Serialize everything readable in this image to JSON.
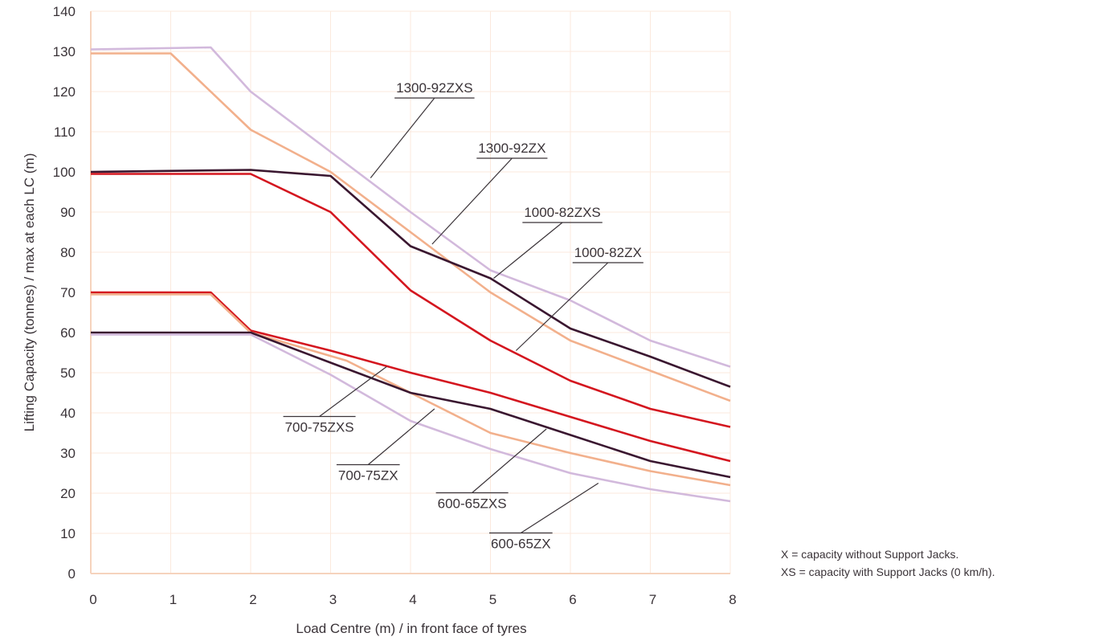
{
  "chart_data": {
    "type": "line",
    "title": "",
    "xlabel": "Load Centre (m) / in front face of tyres",
    "ylabel": "Lifting Capacity (tonnes) / max at each LC (m)",
    "xlim": [
      0,
      8
    ],
    "ylim": [
      0,
      140
    ],
    "xticks": [
      0,
      1,
      2,
      3,
      4,
      5,
      6,
      7,
      8
    ],
    "yticks": [
      0,
      10,
      20,
      30,
      40,
      50,
      60,
      70,
      80,
      90,
      100,
      110,
      120,
      130,
      140
    ],
    "grid": true,
    "colors": {
      "grid": "#fbe9dd",
      "axis": "#f6d3bd",
      "xs_light": "#d2b9dc",
      "x_peach": "#f2b08c",
      "dark": "#3a1730",
      "red": "#d4161f",
      "leader": "#3a3338"
    },
    "series": [
      {
        "name": "1300-92ZXS",
        "color": "#d2b9dc",
        "points": [
          [
            0,
            130.5
          ],
          [
            1.5,
            131
          ],
          [
            2,
            120
          ],
          [
            3,
            105
          ],
          [
            4,
            90
          ],
          [
            5,
            75.5
          ],
          [
            6,
            68
          ],
          [
            7,
            58
          ],
          [
            8,
            51.5
          ]
        ]
      },
      {
        "name": "1300-92ZX",
        "color": "#f2b08c",
        "points": [
          [
            0,
            129.5
          ],
          [
            1,
            129.5
          ],
          [
            2,
            110.5
          ],
          [
            3,
            100
          ],
          [
            4,
            85
          ],
          [
            5,
            70
          ],
          [
            6,
            58
          ],
          [
            7,
            50.5
          ],
          [
            8,
            43
          ]
        ]
      },
      {
        "name": "1000-82ZXS",
        "color": "#3a1730",
        "points": [
          [
            0,
            100
          ],
          [
            2,
            100.5
          ],
          [
            3,
            99
          ],
          [
            4,
            81.5
          ],
          [
            5,
            73.5
          ],
          [
            6,
            61
          ],
          [
            7,
            54
          ],
          [
            8,
            46.5
          ]
        ]
      },
      {
        "name": "1000-82ZX",
        "color": "#d4161f",
        "points": [
          [
            0,
            99.5
          ],
          [
            2,
            99.5
          ],
          [
            3,
            90
          ],
          [
            4,
            70.5
          ],
          [
            5,
            58
          ],
          [
            6,
            48
          ],
          [
            7,
            41
          ],
          [
            8,
            36.5
          ]
        ]
      },
      {
        "name": "700-75ZXS",
        "color": "#d4161f",
        "points": [
          [
            0,
            70
          ],
          [
            1.5,
            70
          ],
          [
            2,
            60.5
          ],
          [
            3,
            55.5
          ],
          [
            4,
            50
          ],
          [
            5,
            45
          ],
          [
            6,
            39
          ],
          [
            7,
            33
          ],
          [
            8,
            28
          ]
        ]
      },
      {
        "name": "700-75ZX",
        "color": "#f2b08c",
        "points": [
          [
            0,
            69.5
          ],
          [
            1.5,
            69.5
          ],
          [
            2,
            60
          ],
          [
            3.2,
            53
          ],
          [
            4,
            45
          ],
          [
            5,
            35
          ],
          [
            6,
            30
          ],
          [
            7,
            25.5
          ],
          [
            8,
            22
          ]
        ]
      },
      {
        "name": "600-65ZXS",
        "color": "#3a1730",
        "points": [
          [
            0,
            60
          ],
          [
            2,
            60
          ],
          [
            3,
            52.5
          ],
          [
            4,
            45
          ],
          [
            5,
            41
          ],
          [
            6,
            34.5
          ],
          [
            7,
            28
          ],
          [
            8,
            24
          ]
        ]
      },
      {
        "name": "600-65ZX",
        "color": "#d2b9dc",
        "points": [
          [
            0,
            59.5
          ],
          [
            2,
            59.5
          ],
          [
            3,
            49.5
          ],
          [
            4,
            38
          ],
          [
            5,
            31
          ],
          [
            6,
            25
          ],
          [
            7,
            21
          ],
          [
            8,
            18
          ]
        ]
      }
    ],
    "annotations": [
      {
        "text": "1300-92ZXS",
        "side": "above",
        "label_at": [
          4.3,
          121
        ],
        "target": [
          3.5,
          98.5
        ]
      },
      {
        "text": "1300-92ZX",
        "side": "above",
        "label_at": [
          5.27,
          106
        ],
        "target": [
          4.27,
          82
        ]
      },
      {
        "text": "1000-82ZXS",
        "side": "above",
        "label_at": [
          5.9,
          90
        ],
        "target": [
          5.04,
          73.5
        ]
      },
      {
        "text": "1000-82ZX",
        "side": "above",
        "label_at": [
          6.47,
          80
        ],
        "target": [
          5.32,
          55.5
        ]
      },
      {
        "text": "700-75ZXS",
        "side": "below",
        "label_at": [
          2.86,
          36.5
        ],
        "target": [
          3.7,
          51.5
        ]
      },
      {
        "text": "700-75ZX",
        "side": "below",
        "label_at": [
          3.47,
          24.5
        ],
        "target": [
          4.3,
          41
        ]
      },
      {
        "text": "600-65ZXS",
        "side": "below",
        "label_at": [
          4.77,
          17.5
        ],
        "target": [
          5.7,
          36
        ]
      },
      {
        "text": "600-65ZX",
        "side": "below",
        "label_at": [
          5.38,
          7.5
        ],
        "target": [
          6.35,
          22.5
        ]
      }
    ]
  },
  "notes": [
    "X = capacity without Support Jacks.",
    "XS = capacity with Support Jacks (0 km/h)."
  ]
}
